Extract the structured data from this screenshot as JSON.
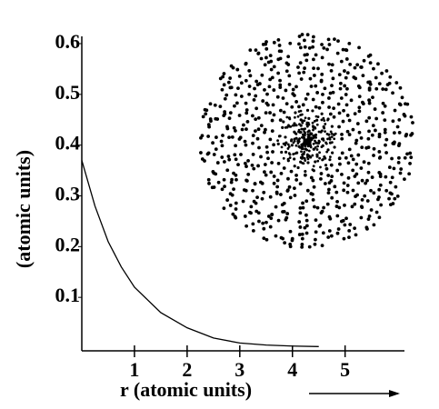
{
  "chart_data": {
    "type": "line",
    "x_label": "r (atomic units)",
    "y_label": "(atomic units)",
    "x": [
      0,
      0.25,
      0.5,
      0.75,
      1,
      1.5,
      2,
      2.5,
      3,
      3.5,
      4,
      4.5
    ],
    "series": [
      {
        "color": "#000000",
        "values": [
          0.37,
          0.28,
          0.21,
          0.16,
          0.12,
          0.07,
          0.04,
          0.02,
          0.01,
          0.006,
          0.004,
          0.003
        ]
      }
    ],
    "xlim": [
      0,
      6.3
    ],
    "ylim": [
      0,
      0.6
    ],
    "xticks": [
      1,
      2,
      3,
      4,
      5
    ],
    "yticks": [
      0.1,
      0.2,
      0.3,
      0.4,
      0.5,
      0.6
    ]
  }
}
